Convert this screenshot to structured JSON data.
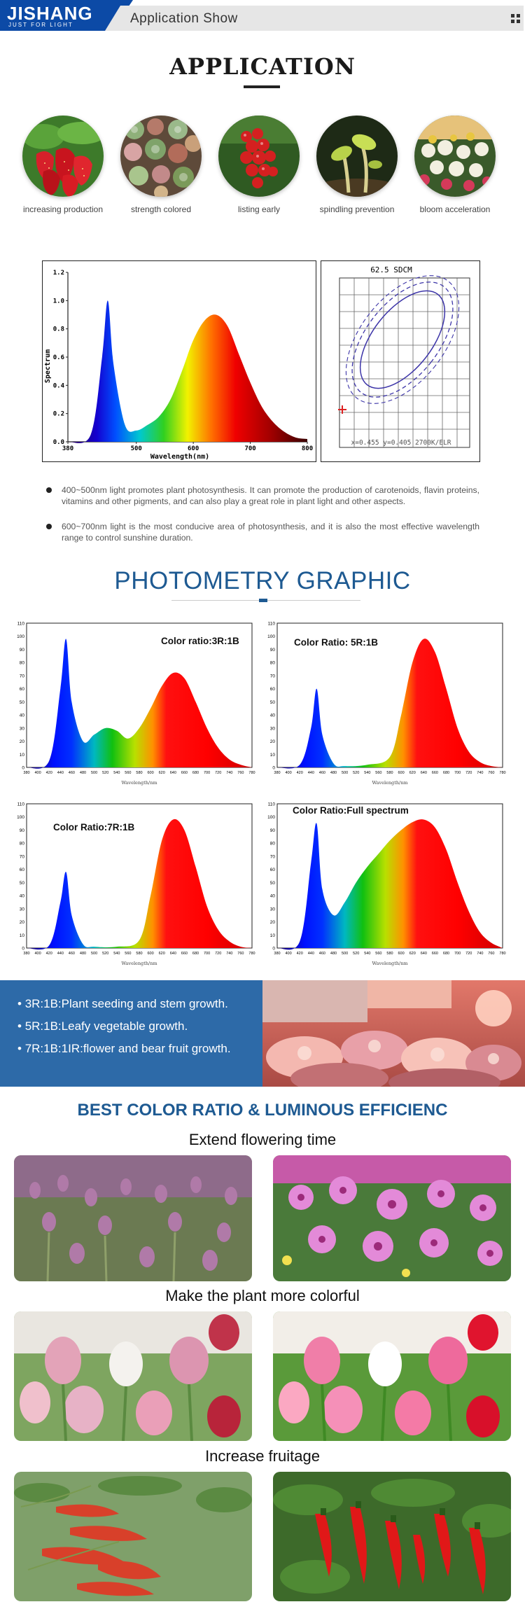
{
  "header": {
    "brand": "JISHANG",
    "tagline": "JUST FOR LIGHT",
    "title": "Application Show",
    "menu_icon": "grid-icon"
  },
  "application": {
    "heading": "APPLICATION",
    "items": [
      {
        "label": "increasing production",
        "icon": "strawberry-photo"
      },
      {
        "label": "strength colored",
        "icon": "succulents-photo"
      },
      {
        "label": "listing early",
        "icon": "tomatoes-photo"
      },
      {
        "label": "spindling prevention",
        "icon": "sprouts-photo"
      },
      {
        "label": "bloom acceleration",
        "icon": "flowers-photo"
      }
    ]
  },
  "spectrum_chart": {
    "ylabel": "Spectrum",
    "xlabel": "Wavelength(nm)",
    "yticks": [
      "1.2",
      "1.0",
      "0.8",
      "0.6",
      "0.4",
      "0.2",
      "0.0"
    ],
    "xticks": [
      "380",
      "500",
      "600",
      "700",
      "800"
    ],
    "cie_title": "62.5 SDCM",
    "cie_caption": "x=0.455 y=0.405 2700K/ELR"
  },
  "bullets": [
    "400~500nm light promotes plant photosynthesis. It can promote the production of carotenoids, flavin proteins, vitamins and other pigments, and can also play a great role in plant light and other aspects.",
    "600~700nm light is the most conducive area of photosynthesis, and it is also the most effective wavelength range to control sunshine duration."
  ],
  "photometry": {
    "heading": "PHOTOMETRY GRAPHIC",
    "xlabel": "Wavelength/nm",
    "yticks": [
      "110",
      "100",
      "90",
      "80",
      "70",
      "60",
      "50",
      "40",
      "30",
      "20",
      "10",
      "0"
    ],
    "xticks": [
      "380",
      "400",
      "420",
      "440",
      "460",
      "480",
      "500",
      "520",
      "540",
      "560",
      "580",
      "600",
      "620",
      "640",
      "660",
      "680",
      "700",
      "720",
      "740",
      "760",
      "780"
    ],
    "panels": [
      {
        "title": "Color ratio:3R:1B"
      },
      {
        "title": "Color Ratio: 5R:1B"
      },
      {
        "title": "Color Ratio:7R:1B"
      },
      {
        "title": "Color Ratio:Full spectrum"
      }
    ]
  },
  "ratios": [
    "3R:1B:Plant seeding and stem growth.",
    "5R:1B:Leafy vegetable growth.",
    "7R:1B:1IR:flower and bear fruit growth."
  ],
  "best": {
    "heading": "BEST COLOR RATIO & LUMINOUS EFFICIENC",
    "sections": [
      {
        "title": "Extend flowering time"
      },
      {
        "title": "Make the plant more colorful"
      },
      {
        "title": "Increase fruitage"
      }
    ]
  },
  "chart_data": [
    {
      "type": "line",
      "xlabel": "Wavelength(nm)",
      "ylabel": "Spectrum",
      "xlim": [
        380,
        800
      ],
      "ylim": [
        0,
        1.2
      ],
      "x": [
        380,
        420,
        440,
        450,
        460,
        480,
        500,
        520,
        540,
        560,
        580,
        600,
        620,
        640,
        660,
        680,
        700,
        720,
        740,
        760,
        780,
        800
      ],
      "y": [
        0.0,
        0.05,
        0.6,
        1.0,
        0.55,
        0.12,
        0.08,
        0.12,
        0.18,
        0.3,
        0.5,
        0.72,
        0.86,
        0.9,
        0.82,
        0.62,
        0.42,
        0.25,
        0.14,
        0.07,
        0.03,
        0.02
      ]
    },
    {
      "type": "area",
      "title": "Color ratio:3R:1B",
      "xlabel": "Wavelength/nm",
      "xlim": [
        380,
        780
      ],
      "ylim": [
        0,
        110
      ],
      "x": [
        380,
        420,
        440,
        450,
        460,
        480,
        500,
        520,
        540,
        560,
        580,
        600,
        620,
        640,
        660,
        680,
        700,
        720,
        740,
        760,
        780
      ],
      "y": [
        0,
        5,
        60,
        98,
        50,
        20,
        25,
        30,
        28,
        22,
        30,
        45,
        62,
        72,
        68,
        50,
        30,
        15,
        6,
        2,
        0
      ]
    },
    {
      "type": "area",
      "title": "Color Ratio: 5R:1B",
      "xlabel": "Wavelength/nm",
      "xlim": [
        380,
        780
      ],
      "ylim": [
        0,
        110
      ],
      "x": [
        380,
        420,
        440,
        450,
        460,
        480,
        500,
        540,
        580,
        600,
        620,
        640,
        660,
        680,
        700,
        720,
        740,
        760,
        780
      ],
      "y": [
        0,
        2,
        30,
        60,
        25,
        3,
        1,
        2,
        8,
        40,
        80,
        98,
        88,
        60,
        30,
        12,
        4,
        1,
        0
      ]
    },
    {
      "type": "area",
      "title": "Color Ratio:7R:1B",
      "xlabel": "Wavelength/nm",
      "xlim": [
        380,
        780
      ],
      "ylim": [
        0,
        110
      ],
      "x": [
        380,
        420,
        440,
        450,
        460,
        480,
        500,
        540,
        580,
        600,
        620,
        640,
        660,
        680,
        700,
        720,
        740,
        760,
        780
      ],
      "y": [
        0,
        2,
        35,
        58,
        25,
        3,
        1,
        1,
        6,
        40,
        82,
        98,
        90,
        62,
        32,
        14,
        5,
        1,
        0
      ]
    },
    {
      "type": "area",
      "title": "Color Ratio:Full spectrum",
      "xlabel": "Wavelength/nm",
      "xlim": [
        380,
        780
      ],
      "ylim": [
        0,
        110
      ],
      "x": [
        380,
        420,
        440,
        450,
        460,
        480,
        500,
        520,
        540,
        560,
        580,
        600,
        620,
        640,
        660,
        680,
        700,
        720,
        740,
        760,
        780
      ],
      "y": [
        0,
        5,
        65,
        95,
        45,
        25,
        35,
        50,
        62,
        72,
        82,
        90,
        96,
        98,
        92,
        75,
        50,
        28,
        12,
        4,
        0
      ]
    }
  ]
}
